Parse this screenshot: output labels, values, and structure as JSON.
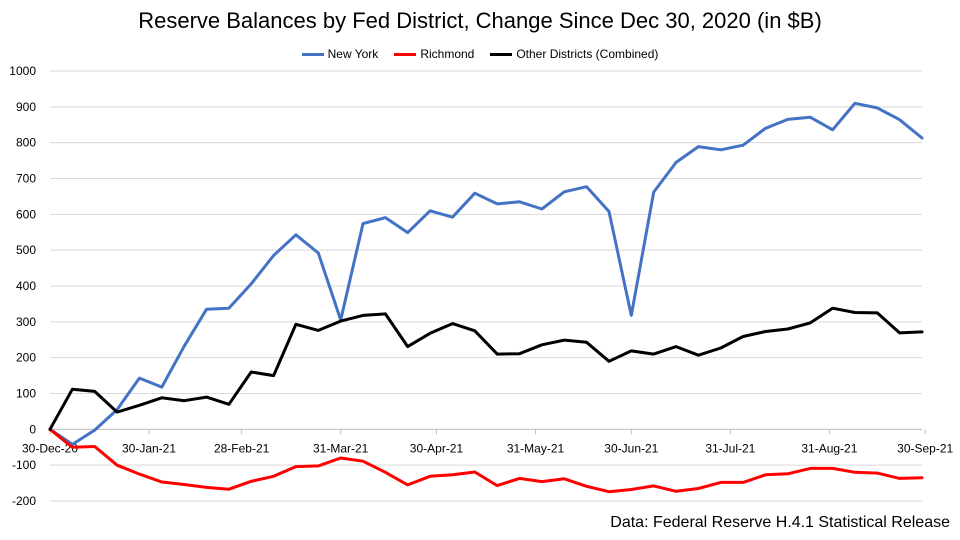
{
  "chart_data": {
    "type": "line",
    "title": "Reserve Balances by Fed District, Change Since Dec 30, 2020 (in $B)",
    "source": "Data: Federal Reserve H.4.1 Statistical Release",
    "ylim": [
      -200,
      1000
    ],
    "yticks": [
      -200,
      -100,
      0,
      100,
      200,
      300,
      400,
      500,
      600,
      700,
      800,
      900,
      1000
    ],
    "x_tick_labels": [
      "30-Dec-20",
      "30-Jan-21",
      "28-Feb-21",
      "31-Mar-21",
      "30-Apr-21",
      "31-May-21",
      "30-Jun-21",
      "31-Jul-21",
      "31-Aug-21",
      "30-Sep-21"
    ],
    "x_tick_dates": [
      "2020-12-30",
      "2021-01-30",
      "2021-02-28",
      "2021-03-31",
      "2021-04-30",
      "2021-05-31",
      "2021-06-30",
      "2021-07-31",
      "2021-08-31",
      "2021-09-30"
    ],
    "x": [
      "2020-12-30",
      "2021-01-06",
      "2021-01-13",
      "2021-01-20",
      "2021-01-27",
      "2021-02-03",
      "2021-02-10",
      "2021-02-17",
      "2021-02-24",
      "2021-03-03",
      "2021-03-10",
      "2021-03-17",
      "2021-03-24",
      "2021-03-31",
      "2021-04-07",
      "2021-04-14",
      "2021-04-21",
      "2021-04-28",
      "2021-05-05",
      "2021-05-12",
      "2021-05-19",
      "2021-05-26",
      "2021-06-02",
      "2021-06-09",
      "2021-06-16",
      "2021-06-23",
      "2021-06-30",
      "2021-07-07",
      "2021-07-14",
      "2021-07-21",
      "2021-07-28",
      "2021-08-04",
      "2021-08-11",
      "2021-08-18",
      "2021-08-25",
      "2021-09-01",
      "2021-09-08",
      "2021-09-15",
      "2021-09-22",
      "2021-09-29"
    ],
    "grid": true,
    "legend_position": "top",
    "series": [
      {
        "name": "New York",
        "color": "#4472C4",
        "values": [
          0,
          -42,
          -2,
          55,
          143,
          118,
          232,
          335,
          338,
          406,
          485,
          543,
          492,
          305,
          574,
          591,
          549,
          610,
          592,
          659,
          629,
          635,
          615,
          663,
          677,
          608,
          318,
          662,
          745,
          789,
          780,
          793,
          840,
          865,
          871,
          836,
          910,
          897,
          864,
          813
        ]
      },
      {
        "name": "Richmond",
        "color": "#FF0000",
        "values": [
          0,
          -50,
          -48,
          -100,
          -125,
          -147,
          -154,
          -162,
          -167,
          -145,
          -131,
          -104,
          -102,
          -80,
          -89,
          -120,
          -155,
          -131,
          -127,
          -119,
          -157,
          -137,
          -146,
          -138,
          -159,
          -174,
          -168,
          -158,
          -173,
          -165,
          -148,
          -148,
          -127,
          -124,
          -109,
          -109,
          -120,
          -122,
          -137,
          -135
        ]
      },
      {
        "name": "Other Districts (Combined)",
        "color": "#000000",
        "values": [
          0,
          112,
          106,
          48,
          67,
          88,
          80,
          90,
          70,
          160,
          150,
          293,
          276,
          302,
          318,
          322,
          231,
          268,
          295,
          275,
          210,
          211,
          236,
          249,
          243,
          190,
          219,
          210,
          231,
          207,
          227,
          259,
          273,
          280,
          297,
          338,
          326,
          325,
          269,
          272
        ]
      }
    ]
  }
}
